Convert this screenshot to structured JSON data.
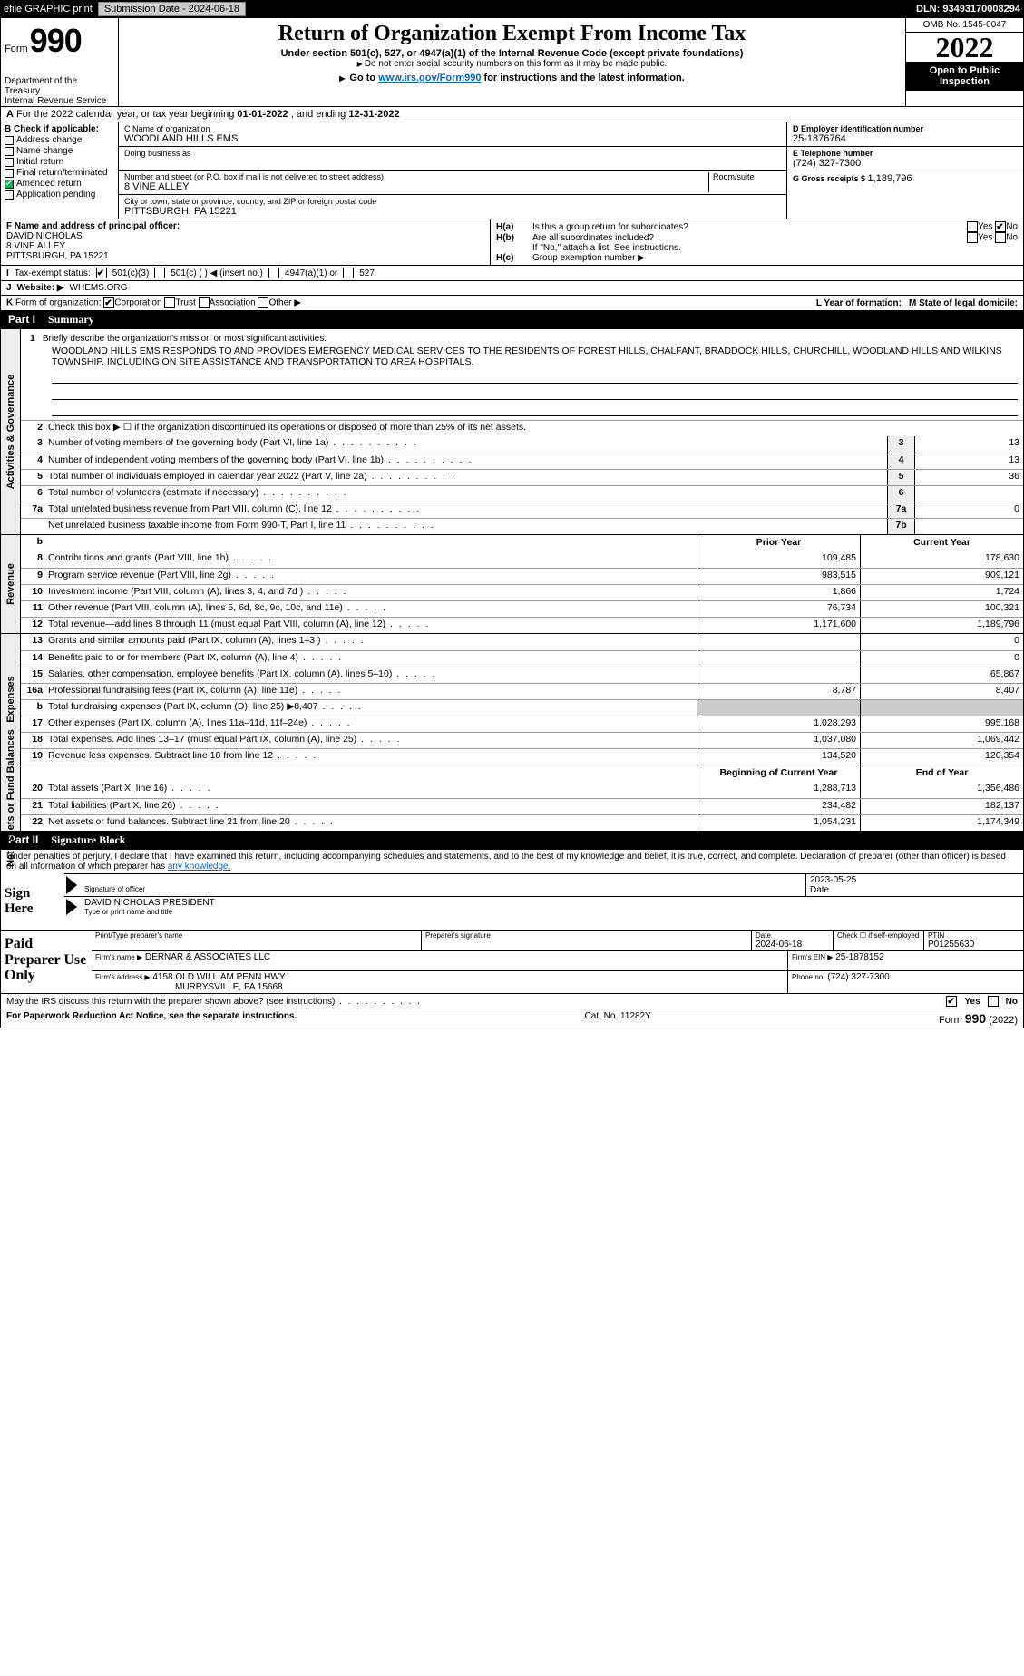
{
  "topbar": {
    "efile": "efile GRAPHIC print",
    "submission_label": "Submission Date - 2024-06-18",
    "dln": "DLN: 93493170008294"
  },
  "header": {
    "form_word": "Form",
    "form_no": "990",
    "dept": "Department of the Treasury",
    "irs": "Internal Revenue Service",
    "title": "Return of Organization Exempt From Income Tax",
    "sub1": "Under section 501(c), 527, or 4947(a)(1) of the Internal Revenue Code (except private foundations)",
    "sub2": "Do not enter social security numbers on this form as it may be made public.",
    "sub3_a": "Go to ",
    "sub3_link": "www.irs.gov/Form990",
    "sub3_b": " for instructions and the latest information.",
    "omb": "OMB No. 1545-0047",
    "year": "2022",
    "open": "Open to Public Inspection"
  },
  "rowA": {
    "a": "A",
    "text_a": "For the 2022 calendar year, or tax year beginning ",
    "begin": "01-01-2022",
    "text_b": "  , and ending ",
    "end": "12-31-2022"
  },
  "colB": {
    "hdr": "B Check if applicable:",
    "addr": "Address change",
    "name": "Name change",
    "init": "Initial return",
    "final": "Final return/terminated",
    "amend": "Amended return",
    "app": "Application pending"
  },
  "colC": {
    "name_lbl": "C Name of organization",
    "name": "WOODLAND HILLS EMS",
    "dba_lbl": "Doing business as",
    "dba": "",
    "street_lbl": "Number and street (or P.O. box if mail is not delivered to street address)",
    "room_lbl": "Room/suite",
    "street": "8 VINE ALLEY",
    "city_lbl": "City or town, state or province, country, and ZIP or foreign postal code",
    "city": "PITTSBURGH, PA  15221"
  },
  "colDE": {
    "d_lbl": "D Employer identification number",
    "d_val": "25-1876764",
    "e_lbl": "E Telephone number",
    "e_val": "(724) 327-7300",
    "g_lbl": "G Gross receipts $ ",
    "g_val": "1,189,796"
  },
  "rowF": {
    "lbl": "F  Name and address of principal officer:",
    "l1": "DAVID NICHOLAS",
    "l2": "8 VINE ALLEY",
    "l3": "PITTSBURGH, PA  15221"
  },
  "rowH": {
    "ha_k": "H(a)",
    "ha_t": "Is this a group return for subordinates?",
    "hb_k": "H(b)",
    "hb_t": "Are all subordinates included?",
    "hb_note": "If \"No,\" attach a list. See instructions.",
    "hc_k": "H(c)",
    "hc_t": "Group exemption number ▶",
    "yes": "Yes",
    "no": "No"
  },
  "rowI": {
    "k": "I",
    "lbl": "Tax-exempt status:",
    "o1": "501(c)(3)",
    "o2": "501(c) (   ) ◀ (insert no.)",
    "o3": "4947(a)(1) or",
    "o4": "527"
  },
  "rowJ": {
    "k": "J",
    "lbl": "Website: ▶",
    "val": "WHEMS.ORG"
  },
  "rowK": {
    "k": "K",
    "lbl": "Form of organization:",
    "o1": "Corporation",
    "o2": "Trust",
    "o3": "Association",
    "o4": "Other ▶",
    "l_lbl": "L Year of formation:",
    "m_lbl": "M State of legal domicile:"
  },
  "part1": {
    "num": "Part I",
    "title": "Summary"
  },
  "sumA": {
    "tab": "Activities & Governance",
    "l1_num": "1",
    "l1_txt": "Briefly describe the organization's mission or most significant activities:",
    "mission": "WOODLAND HILLS EMS RESPONDS TO AND PROVIDES EMERGENCY MEDICAL SERVICES TO THE RESIDENTS OF FOREST HILLS, CHALFANT, BRADDOCK HILLS, CHURCHILL, WOODLAND HILLS AND WILKINS TOWNSHIP, INCLUDING ON SITE ASSISTANCE AND TRANSPORTATION TO AREA HOSPITALS.",
    "l2_num": "2",
    "l2_txt": "Check this box ▶ ☐ if the organization discontinued its operations or disposed of more than 25% of its net assets.",
    "rows": [
      {
        "n": "3",
        "t": "Number of voting members of the governing body (Part VI, line 1a)",
        "b": "3",
        "v": "13"
      },
      {
        "n": "4",
        "t": "Number of independent voting members of the governing body (Part VI, line 1b)",
        "b": "4",
        "v": "13"
      },
      {
        "n": "5",
        "t": "Total number of individuals employed in calendar year 2022 (Part V, line 2a)",
        "b": "5",
        "v": "36"
      },
      {
        "n": "6",
        "t": "Total number of volunteers (estimate if necessary)",
        "b": "6",
        "v": ""
      },
      {
        "n": "7a",
        "t": "Total unrelated business revenue from Part VIII, column (C), line 12",
        "b": "7a",
        "v": "0"
      },
      {
        "n": "",
        "t": "Net unrelated business taxable income from Form 990-T, Part I, line 11",
        "b": "7b",
        "v": ""
      }
    ]
  },
  "sumR": {
    "tab": "Revenue",
    "hdr_b": "b",
    "h_prior": "Prior Year",
    "h_curr": "Current Year",
    "rows": [
      {
        "n": "8",
        "t": "Contributions and grants (Part VIII, line 1h)",
        "p": "109,485",
        "c": "178,630"
      },
      {
        "n": "9",
        "t": "Program service revenue (Part VIII, line 2g)",
        "p": "983,515",
        "c": "909,121"
      },
      {
        "n": "10",
        "t": "Investment income (Part VIII, column (A), lines 3, 4, and 7d )",
        "p": "1,866",
        "c": "1,724"
      },
      {
        "n": "11",
        "t": "Other revenue (Part VIII, column (A), lines 5, 6d, 8c, 9c, 10c, and 11e)",
        "p": "76,734",
        "c": "100,321"
      },
      {
        "n": "12",
        "t": "Total revenue—add lines 8 through 11 (must equal Part VIII, column (A), line 12)",
        "p": "1,171,600",
        "c": "1,189,796"
      }
    ]
  },
  "sumE": {
    "tab": "Expenses",
    "rows": [
      {
        "n": "13",
        "t": "Grants and similar amounts paid (Part IX, column (A), lines 1–3 )",
        "p": "",
        "c": "0"
      },
      {
        "n": "14",
        "t": "Benefits paid to or for members (Part IX, column (A), line 4)",
        "p": "",
        "c": "0"
      },
      {
        "n": "15",
        "t": "Salaries, other compensation, employee benefits (Part IX, column (A), lines 5–10)",
        "p": "",
        "c": "65,867"
      },
      {
        "n": "16a",
        "t": "Professional fundraising fees (Part IX, column (A), line 11e)",
        "p": "8,787",
        "c": "8,407"
      },
      {
        "n": "b",
        "t": "Total fundraising expenses (Part IX, column (D), line 25) ▶8,407",
        "p": "grey",
        "c": "grey"
      },
      {
        "n": "17",
        "t": "Other expenses (Part IX, column (A), lines 11a–11d, 11f–24e)",
        "p": "1,028,293",
        "c": "995,168"
      },
      {
        "n": "18",
        "t": "Total expenses. Add lines 13–17 (must equal Part IX, column (A), line 25)",
        "p": "1,037,080",
        "c": "1,069,442"
      },
      {
        "n": "19",
        "t": "Revenue less expenses. Subtract line 18 from line 12",
        "p": "134,520",
        "c": "120,354"
      }
    ]
  },
  "sumN": {
    "tab": "Net Assets or Fund Balances",
    "h_prior": "Beginning of Current Year",
    "h_curr": "End of Year",
    "rows": [
      {
        "n": "20",
        "t": "Total assets (Part X, line 16)",
        "p": "1,288,713",
        "c": "1,356,486"
      },
      {
        "n": "21",
        "t": "Total liabilities (Part X, line 26)",
        "p": "234,482",
        "c": "182,137"
      },
      {
        "n": "22",
        "t": "Net assets or fund balances. Subtract line 21 from line 20",
        "p": "1,054,231",
        "c": "1,174,349"
      }
    ]
  },
  "part2": {
    "num": "Part II",
    "title": "Signature Block"
  },
  "sig": {
    "decl": "Under penalties of perjury, I declare that I have examined this return, including accompanying schedules and statements, and to the best of my knowledge and belief, it is true, correct, and complete. Declaration of preparer (other than officer) is based on all information of which preparer has ",
    "decl_link": "any knowledge.",
    "sign_here": "Sign Here",
    "sig_lbl": "Signature of officer",
    "date_lbl": "Date",
    "date_val": "2023-05-25",
    "name_val": "DAVID NICHOLAS  PRESIDENT",
    "name_lbl": "Type or print name and title"
  },
  "prep": {
    "left": "Paid Preparer Use Only",
    "r1_c1_lbl": "Print/Type preparer's name",
    "r1_c2_lbl": "Preparer's signature",
    "r1_c3_lbl": "Date",
    "r1_c3_val": "2024-06-18",
    "r1_c4_lbl": "Check ☐ if self-employed",
    "r1_c5_lbl": "PTIN",
    "r1_c5_val": "P01255630",
    "r2_c1_lbl": "Firm's name    ▶",
    "r2_c1_val": "DERNAR & ASSOCIATES LLC",
    "r2_c2_lbl": "Firm's EIN ▶",
    "r2_c2_val": "25-1878152",
    "r3_c1_lbl": "Firm's address ▶",
    "r3_c1_val": "4158 OLD WILLIAM PENN HWY",
    "r3_c1_val2": "MURRYSVILLE, PA  15668",
    "r3_c2_lbl": "Phone no.",
    "r3_c2_val": "(724) 327-7300"
  },
  "discuss": {
    "txt": "May the IRS discuss this return with the preparer shown above? (see instructions)",
    "yes": "Yes",
    "no": "No"
  },
  "footer": {
    "l": "For Paperwork Reduction Act Notice, see the separate instructions.",
    "m": "Cat. No. 11282Y",
    "r_a": "Form ",
    "r_b": "990",
    "r_c": " (2022)"
  }
}
